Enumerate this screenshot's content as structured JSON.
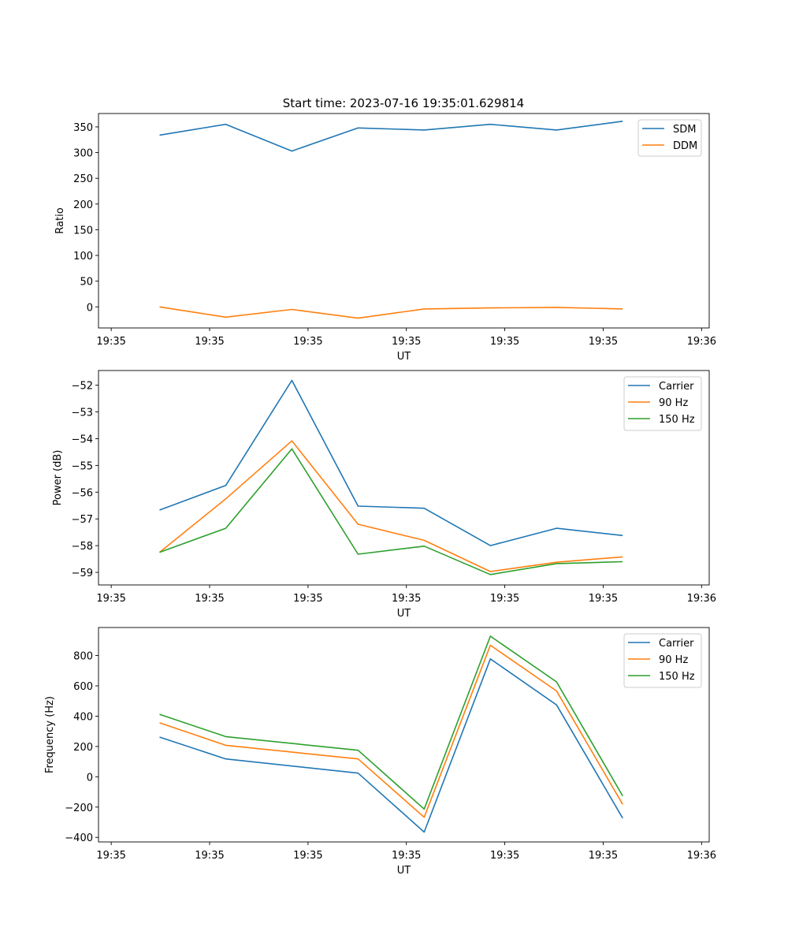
{
  "figure_title": "Start time: 2023-07-16 19:35:01.629814",
  "chart_data": [
    {
      "type": "line",
      "xlabel": "UT",
      "ylabel": "Ratio",
      "x_tick_labels": [
        "19:35",
        "19:35",
        "19:35",
        "19:35",
        "19:35",
        "19:35",
        "19:36"
      ],
      "ylim": [
        -41,
        376
      ],
      "yticks": [
        0,
        50,
        100,
        150,
        200,
        250,
        300,
        350
      ],
      "y_tick_labels": [
        "0",
        "50",
        "100",
        "150",
        "200",
        "250",
        "300",
        "350"
      ],
      "x_points": [
        0.6,
        1.25,
        1.9,
        2.55,
        3.2,
        3.85,
        4.5,
        5.15
      ],
      "xlim": [
        0,
        6
      ],
      "legend": "top-right",
      "series": [
        {
          "name": "SDM",
          "color": "#1f77b4",
          "values": [
            334,
            355,
            303,
            348,
            344,
            355,
            344,
            361
          ]
        },
        {
          "name": "DDM",
          "color": "#ff7f0e",
          "values": [
            0,
            -20,
            -5,
            -22,
            -4,
            -2,
            -1,
            -4
          ]
        }
      ]
    },
    {
      "type": "line",
      "xlabel": "UT",
      "ylabel": "Power (dB)",
      "x_tick_labels": [
        "19:35",
        "19:35",
        "19:35",
        "19:35",
        "19:35",
        "19:35",
        "19:36"
      ],
      "ylim": [
        -59.47,
        -51.45
      ],
      "yticks": [
        -59,
        -58,
        -57,
        -56,
        -55,
        -54,
        -53,
        -52
      ],
      "y_tick_labels": [
        "−59",
        "−58",
        "−57",
        "−56",
        "−55",
        "−54",
        "−53",
        "−52"
      ],
      "x_points": [
        0.6,
        1.25,
        1.9,
        2.55,
        3.2,
        3.85,
        4.5,
        5.15
      ],
      "xlim": [
        0,
        6
      ],
      "legend": "top-right",
      "series": [
        {
          "name": "Carrier",
          "color": "#1f77b4",
          "values": [
            -56.67,
            -55.75,
            -51.82,
            -56.52,
            -56.6,
            -58.0,
            -57.35,
            -57.62
          ]
        },
        {
          "name": "90 Hz",
          "color": "#ff7f0e",
          "values": [
            -58.25,
            -56.25,
            -54.08,
            -57.2,
            -57.8,
            -58.97,
            -58.62,
            -58.42
          ]
        },
        {
          "name": "150 Hz",
          "color": "#2ca02c",
          "values": [
            -58.25,
            -57.35,
            -54.38,
            -58.32,
            -58.02,
            -59.08,
            -58.67,
            -58.6
          ]
        }
      ]
    },
    {
      "type": "line",
      "xlabel": "UT",
      "ylabel": "Frequency (Hz)",
      "x_tick_labels": [
        "19:35",
        "19:35",
        "19:35",
        "19:35",
        "19:35",
        "19:35",
        "19:36"
      ],
      "ylim": [
        -430,
        985
      ],
      "yticks": [
        -400,
        -200,
        0,
        200,
        400,
        600,
        800
      ],
      "y_tick_labels": [
        "−400",
        "−200",
        "0",
        "200",
        "400",
        "600",
        "800"
      ],
      "x_points": [
        0.6,
        1.25,
        1.9,
        2.55,
        3.2,
        3.85,
        4.5,
        5.15
      ],
      "xlim": [
        0,
        6
      ],
      "legend": "top-right",
      "series": [
        {
          "name": "Carrier",
          "color": "#1f77b4",
          "values": [
            262,
            118,
            null,
            24,
            -365,
            778,
            474,
            -273
          ]
        },
        {
          "name": "90 Hz",
          "color": "#ff7f0e",
          "values": [
            356,
            208,
            null,
            118,
            -267,
            868,
            566,
            -182
          ]
        },
        {
          "name": "150 Hz",
          "color": "#2ca02c",
          "values": [
            412,
            265,
            null,
            175,
            -213,
            928,
            626,
            -126
          ]
        }
      ]
    }
  ]
}
